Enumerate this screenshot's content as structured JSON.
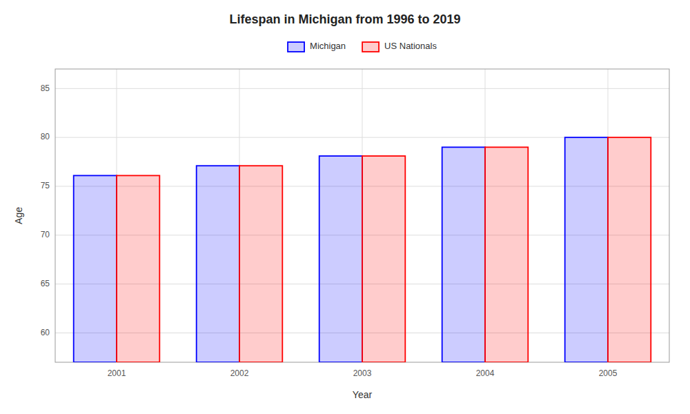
{
  "chart_data": {
    "type": "bar",
    "title": "Lifespan in Michigan from 1996 to 2019",
    "xlabel": "Year",
    "ylabel": "Age",
    "categories": [
      "2001",
      "2002",
      "2003",
      "2004",
      "2005"
    ],
    "series": [
      {
        "name": "Michigan",
        "color": "#0000ff",
        "values": [
          76.1,
          77.1,
          78.1,
          79.0,
          80.0
        ]
      },
      {
        "name": "US Nationals",
        "color": "#ff0000",
        "values": [
          76.1,
          77.1,
          78.1,
          79.0,
          80.0
        ]
      }
    ],
    "ylim": [
      57,
      87
    ],
    "yticks": [
      60,
      65,
      70,
      75,
      80,
      85
    ],
    "grid": true,
    "legend": "top"
  }
}
